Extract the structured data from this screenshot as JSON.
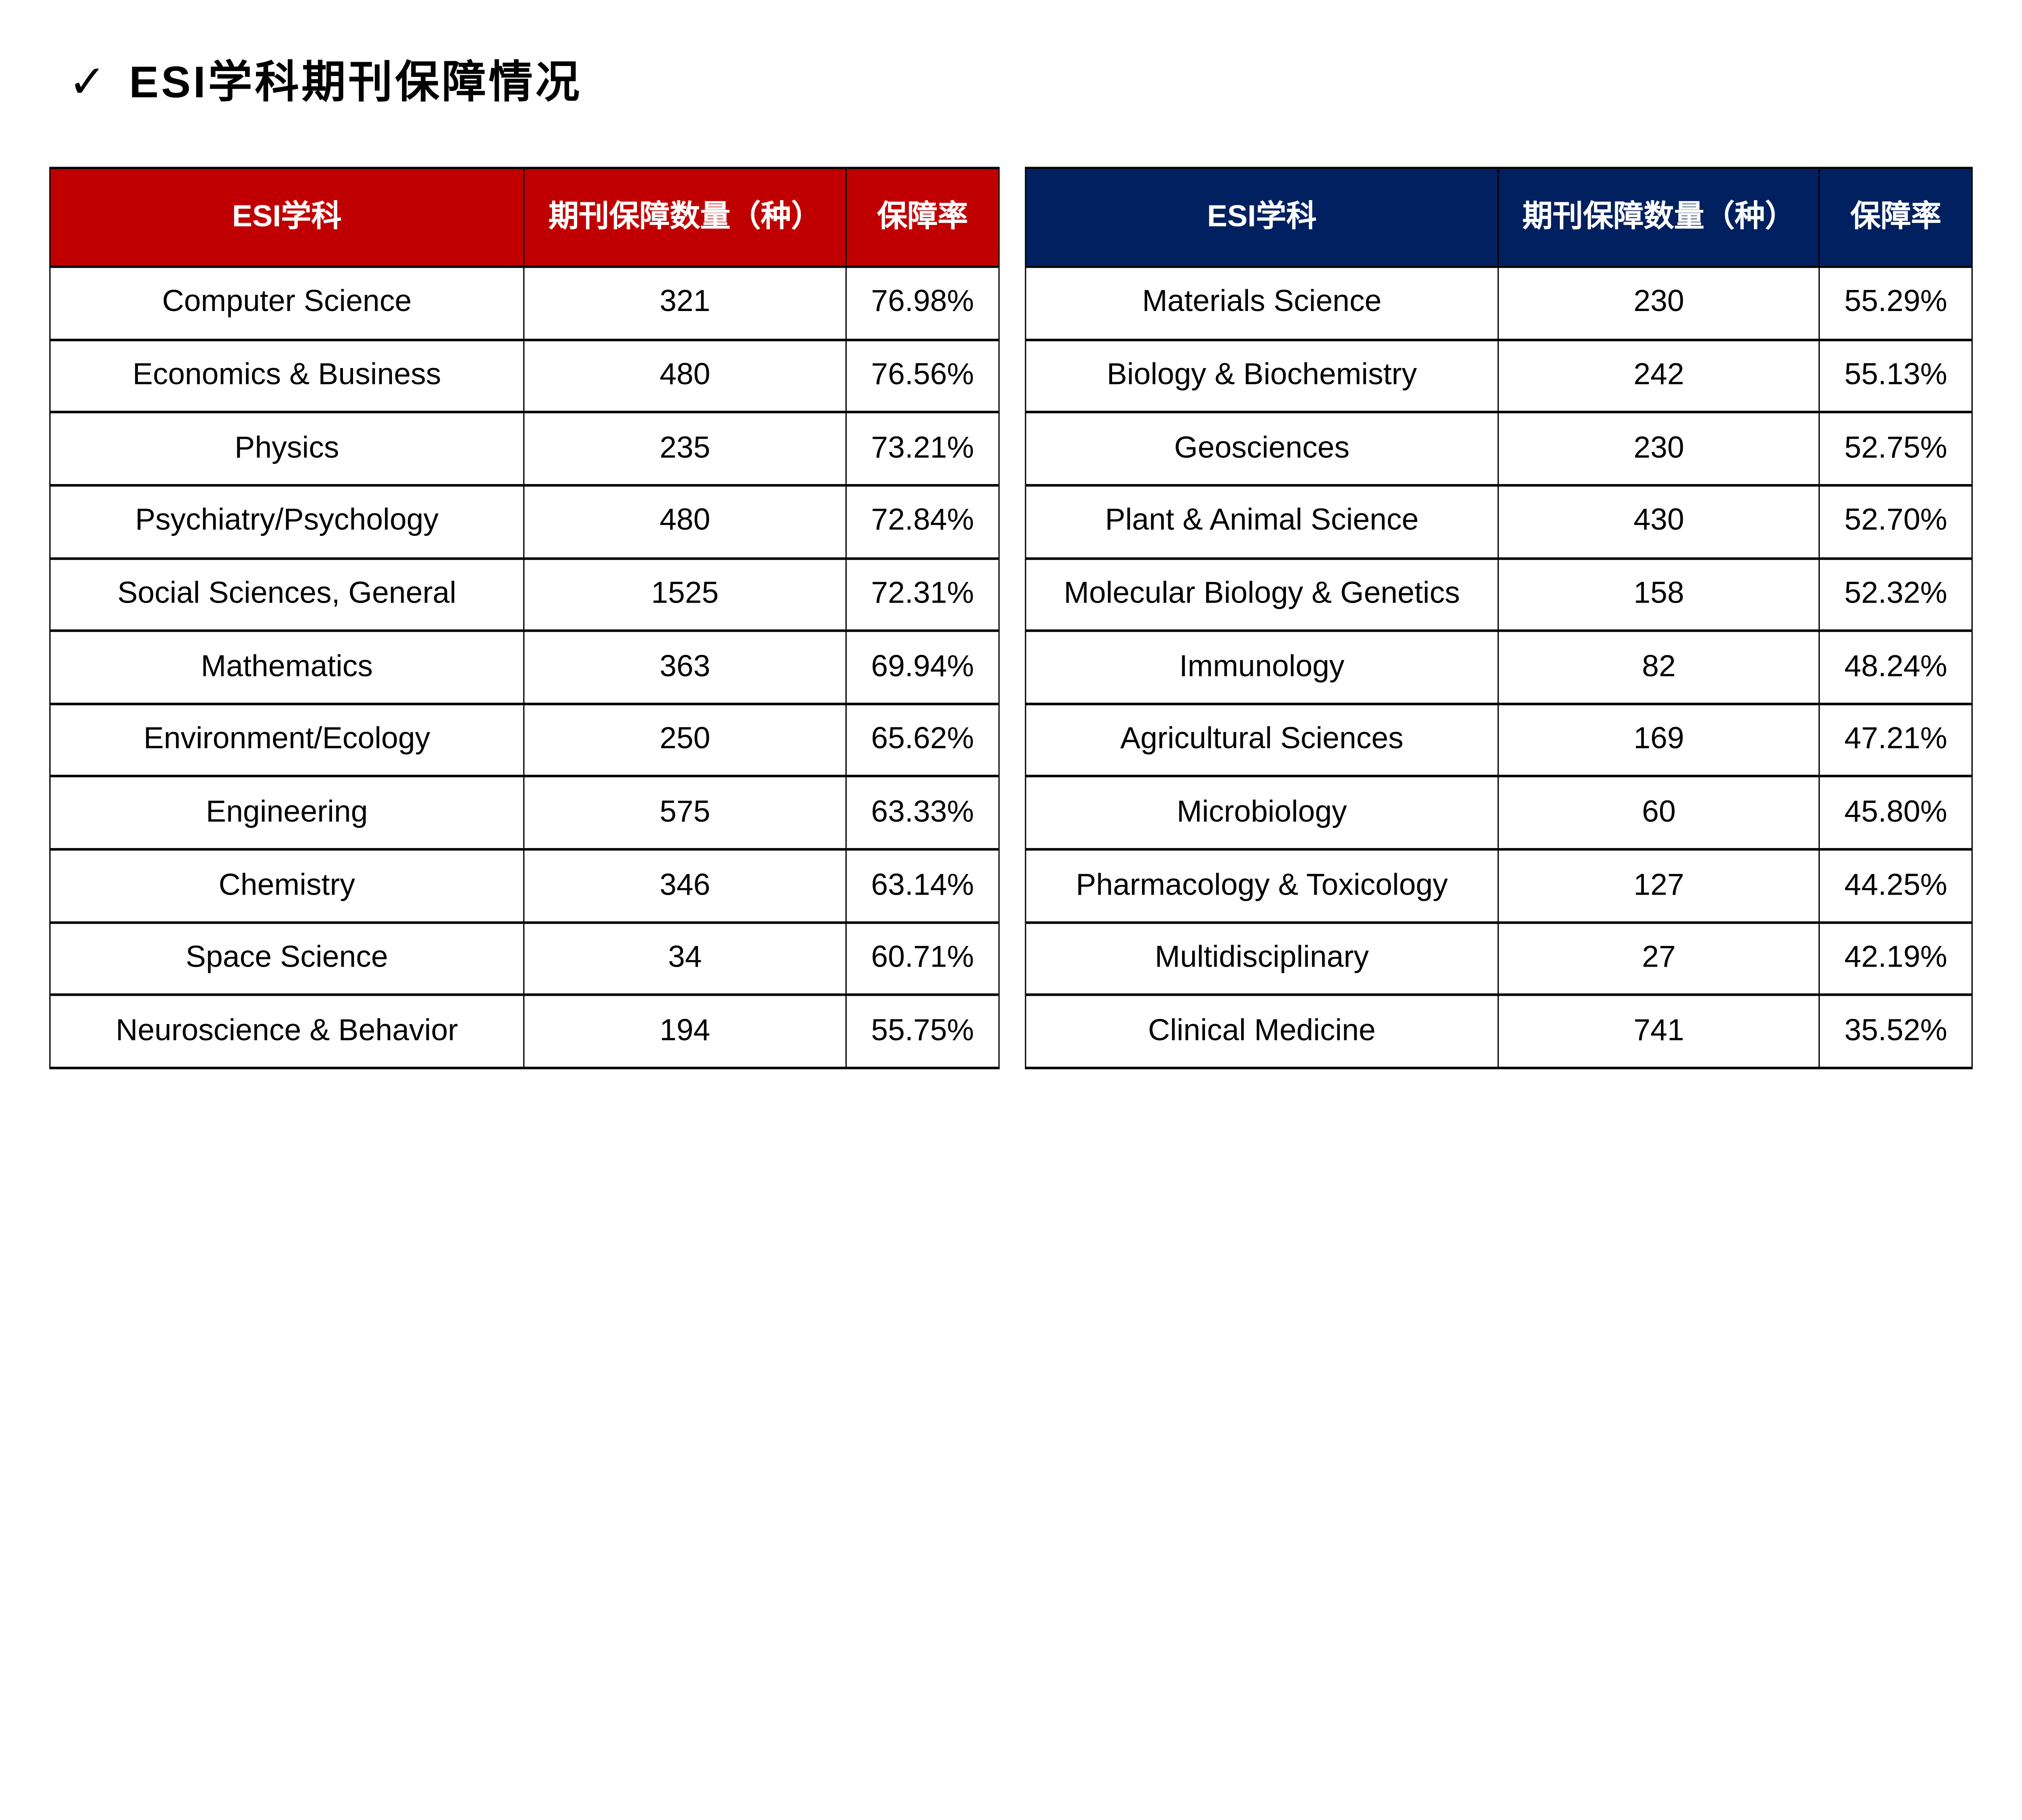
{
  "title": {
    "check": "✓",
    "text": "ESI学科期刊保障情况"
  },
  "colors": {
    "header_red": "#C00000",
    "header_navy": "#002060",
    "header_text": "#FFFFFF",
    "body_text": "#000000",
    "border": "#000000",
    "background": "#FFFFFF"
  },
  "tables": [
    {
      "name": "esi-table-red",
      "header_bg": "#C00000",
      "columns": [
        "ESI学科",
        "期刊保障数量（种）",
        "保障率"
      ],
      "rows": [
        [
          "Computer Science",
          "321",
          "76.98%"
        ],
        [
          "Economics & Business",
          "480",
          "76.56%"
        ],
        [
          "Physics",
          "235",
          "73.21%"
        ],
        [
          "Psychiatry/Psychology",
          "480",
          "72.84%"
        ],
        [
          "Social Sciences, General",
          "1525",
          "72.31%"
        ],
        [
          "Mathematics",
          "363",
          "69.94%"
        ],
        [
          "Environment/Ecology",
          "250",
          "65.62%"
        ],
        [
          "Engineering",
          "575",
          "63.33%"
        ],
        [
          "Chemistry",
          "346",
          "63.14%"
        ],
        [
          "Space Science",
          "34",
          "60.71%"
        ],
        [
          "Neuroscience & Behavior",
          "194",
          "55.75%"
        ]
      ]
    },
    {
      "name": "esi-table-navy",
      "header_bg": "#002060",
      "columns": [
        "ESI学科",
        "期刊保障数量（种）",
        "保障率"
      ],
      "rows": [
        [
          "Materials Science",
          "230",
          "55.29%"
        ],
        [
          "Biology & Biochemistry",
          "242",
          "55.13%"
        ],
        [
          "Geosciences",
          "230",
          "52.75%"
        ],
        [
          "Plant & Animal Science",
          "430",
          "52.70%"
        ],
        [
          "Molecular Biology & Genetics",
          "158",
          "52.32%"
        ],
        [
          "Immunology",
          "82",
          "48.24%"
        ],
        [
          "Agricultural Sciences",
          "169",
          "47.21%"
        ],
        [
          "Microbiology",
          "60",
          "45.80%"
        ],
        [
          "Pharmacology & Toxicology",
          "127",
          "44.25%"
        ],
        [
          "Multidisciplinary",
          "27",
          "42.19%"
        ],
        [
          "Clinical Medicine",
          "741",
          "35.52%"
        ]
      ]
    }
  ]
}
